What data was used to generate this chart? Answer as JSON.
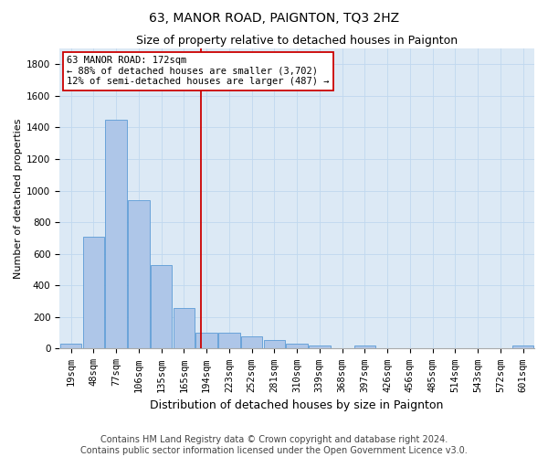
{
  "title": "63, MANOR ROAD, PAIGNTON, TQ3 2HZ",
  "subtitle": "Size of property relative to detached houses in Paignton",
  "xlabel": "Distribution of detached houses by size in Paignton",
  "ylabel": "Number of detached properties",
  "categories": [
    "19sqm",
    "48sqm",
    "77sqm",
    "106sqm",
    "135sqm",
    "165sqm",
    "194sqm",
    "223sqm",
    "252sqm",
    "281sqm",
    "310sqm",
    "339sqm",
    "368sqm",
    "397sqm",
    "426sqm",
    "456sqm",
    "485sqm",
    "514sqm",
    "543sqm",
    "572sqm",
    "601sqm"
  ],
  "values": [
    30,
    710,
    1450,
    940,
    530,
    255,
    100,
    100,
    75,
    55,
    30,
    20,
    0,
    20,
    0,
    0,
    0,
    0,
    0,
    0,
    20
  ],
  "bar_color": "#aec6e8",
  "bar_edge_color": "#5b9bd5",
  "vline_color": "#cc0000",
  "vline_x": 5.74,
  "annotation_text": "63 MANOR ROAD: 172sqm\n← 88% of detached houses are smaller (3,702)\n12% of semi-detached houses are larger (487) →",
  "annotation_box_color": "#ffffff",
  "annotation_box_edge": "#cc0000",
  "ylim": [
    0,
    1900
  ],
  "yticks": [
    0,
    200,
    400,
    600,
    800,
    1000,
    1200,
    1400,
    1600,
    1800
  ],
  "grid_color": "#c0d8ef",
  "bg_color": "#dce9f5",
  "footer": "Contains HM Land Registry data © Crown copyright and database right 2024.\nContains public sector information licensed under the Open Government Licence v3.0.",
  "title_fontsize": 10,
  "subtitle_fontsize": 9,
  "ylabel_fontsize": 8,
  "xlabel_fontsize": 9,
  "tick_fontsize": 7.5,
  "footer_fontsize": 7,
  "ann_fontsize": 7.5
}
